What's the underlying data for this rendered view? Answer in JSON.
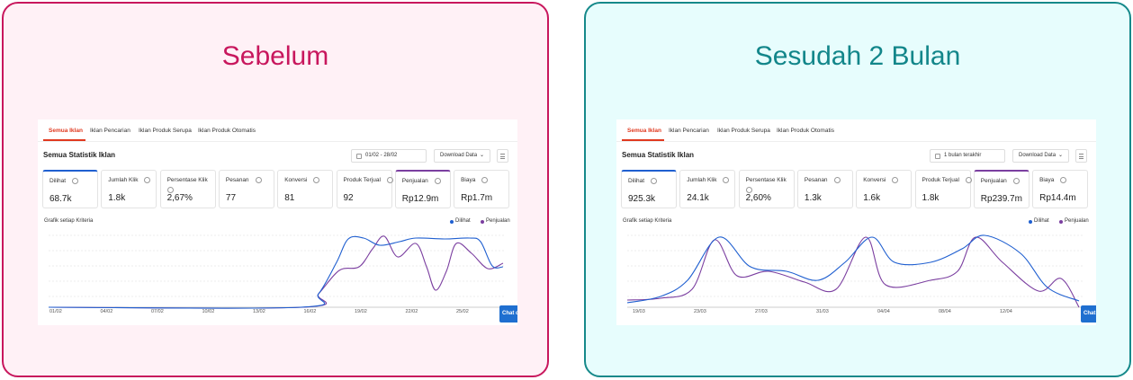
{
  "panels": [
    {
      "heading": "Sebelum",
      "tabs": [
        "Semua Iklan",
        "Iklan Pencarian",
        "Iklan Produk Serupa",
        "Iklan Produk Otomatis"
      ],
      "section_title": "Semua Statistik Iklan",
      "date_filter": "01/02 - 28/02",
      "download": "Download Data",
      "metrics": [
        {
          "label": "Dilihat",
          "value": "68.7k"
        },
        {
          "label": "Jumlah Klik",
          "value": "1.8k"
        },
        {
          "label": "Persentase Klik",
          "value": "2,67%"
        },
        {
          "label": "Pesanan",
          "value": "77"
        },
        {
          "label": "Konversi",
          "value": "81"
        },
        {
          "label": "Produk Terjual",
          "value": "92"
        },
        {
          "label": "Penjualan",
          "value": "Rp12.9m"
        },
        {
          "label": "Biaya",
          "value": "Rp1.7m"
        }
      ],
      "chart_title": "Grafik setiap Kriteria",
      "legend": [
        "Dilihat",
        "Penjualan"
      ],
      "xticks": [
        "01/02",
        "04/02",
        "07/02",
        "10/02",
        "13/02",
        "16/02",
        "19/02",
        "22/02",
        "25/02"
      ],
      "chat": "Chat d"
    },
    {
      "heading": "Sesudah 2 Bulan",
      "tabs": [
        "Semua Iklan",
        "Iklan Pencarian",
        "Iklan Produk Serupa",
        "Iklan Produk Otomatis"
      ],
      "section_title": "Semua Statistik Iklan",
      "date_filter": "1 bulan terakhir",
      "download": "Download Data",
      "metrics": [
        {
          "label": "Dilihat",
          "value": "925.3k"
        },
        {
          "label": "Jumlah Klik",
          "value": "24.1k"
        },
        {
          "label": "Persentase Klik",
          "value": "2,60%"
        },
        {
          "label": "Pesanan",
          "value": "1.3k"
        },
        {
          "label": "Konversi",
          "value": "1.6k"
        },
        {
          "label": "Produk Terjual",
          "value": "1.8k"
        },
        {
          "label": "Penjualan",
          "value": "Rp239.7m"
        },
        {
          "label": "Biaya",
          "value": "Rp14.4m"
        }
      ],
      "chart_title": "Grafik setiap Kriteria",
      "legend": [
        "Dilihat",
        "Penjualan"
      ],
      "xticks": [
        "19/03",
        "23/03",
        "27/03",
        "31/03",
        "04/04",
        "08/04",
        "12/04"
      ],
      "chat": "Chat d"
    }
  ]
}
